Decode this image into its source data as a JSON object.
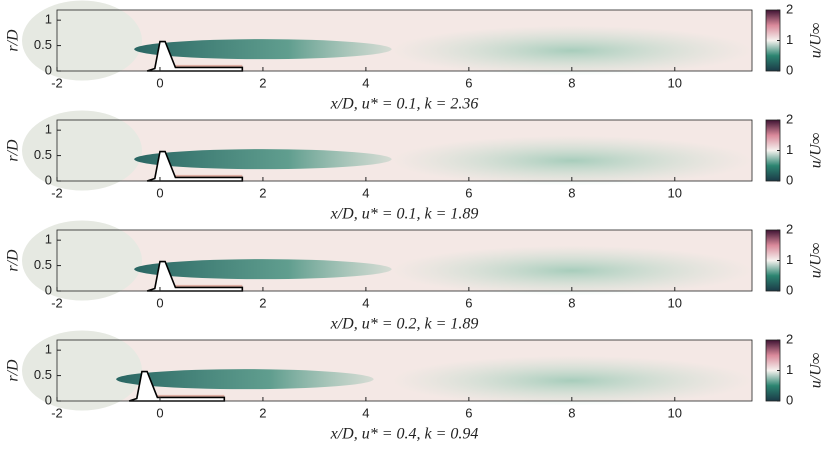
{
  "chart_data": [
    {
      "type": "contour",
      "xlabel": "x/D, u* = 0.1, k = 2.36",
      "ylabel": "r/D",
      "xlim": [
        -2,
        11.5
      ],
      "xticks": [
        -2,
        0,
        2,
        4,
        6,
        8,
        10
      ],
      "ylim": [
        0,
        1.2
      ],
      "yticks": [
        0,
        0.5,
        1
      ],
      "colorbar": {
        "label": "u/U∞",
        "lim": [
          0,
          2
        ],
        "ticks": [
          0,
          1,
          2
        ]
      }
    },
    {
      "type": "contour",
      "xlabel": "x/D, u* = 0.1, k = 1.89",
      "ylabel": "r/D",
      "xlim": [
        -2,
        11.5
      ],
      "xticks": [
        -2,
        0,
        2,
        4,
        6,
        8,
        10
      ],
      "ylim": [
        0,
        1.2
      ],
      "yticks": [
        0,
        0.5,
        1
      ],
      "colorbar": {
        "label": "u/U∞",
        "lim": [
          0,
          2
        ],
        "ticks": [
          0,
          1,
          2
        ]
      }
    },
    {
      "type": "contour",
      "xlabel": "x/D, u* = 0.2, k = 1.89",
      "ylabel": "r/D",
      "xlim": [
        -2,
        11.5
      ],
      "xticks": [
        -2,
        0,
        2,
        4,
        6,
        8,
        10
      ],
      "ylim": [
        0,
        1.2
      ],
      "yticks": [
        0,
        0.5,
        1
      ],
      "colorbar": {
        "label": "u/U∞",
        "lim": [
          0,
          2
        ],
        "ticks": [
          0,
          1,
          2
        ]
      }
    },
    {
      "type": "contour",
      "xlabel": "x/D, u* = 0.4, k = 0.94",
      "ylabel": "r/D",
      "xlim": [
        -2,
        11.5
      ],
      "xticks": [
        -2,
        0,
        2,
        4,
        6,
        8,
        10
      ],
      "ylim": [
        0,
        1.2
      ],
      "yticks": [
        0,
        0.5,
        1
      ],
      "colorbar": {
        "label": "u/U∞",
        "lim": [
          0,
          2
        ],
        "ticks": [
          0,
          1,
          2
        ]
      }
    }
  ]
}
